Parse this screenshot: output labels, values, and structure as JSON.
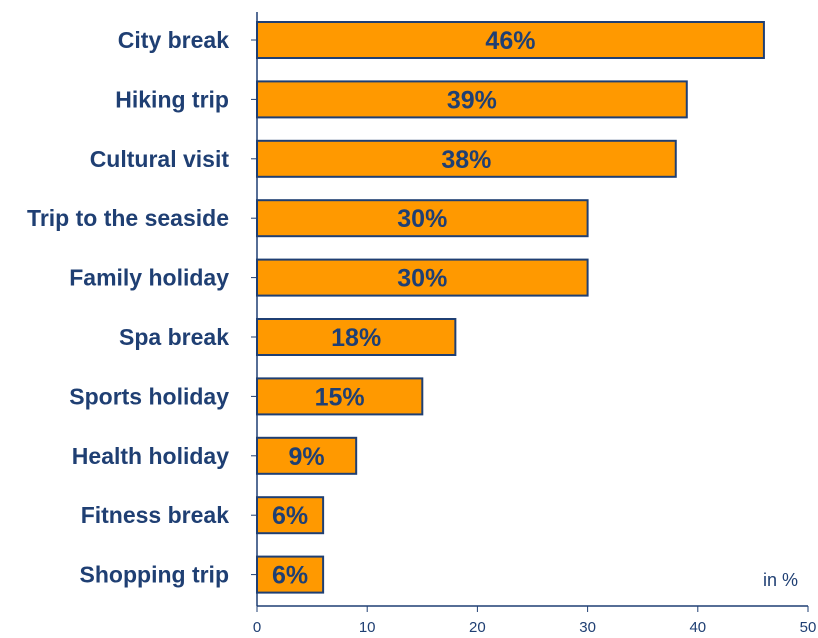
{
  "colors": {
    "bar_fill": "#ff9900",
    "bar_stroke": "#1f3f73",
    "text": "#1f3f73",
    "axis": "#1f3f73"
  },
  "chart_data": {
    "type": "bar",
    "orientation": "horizontal",
    "title": "",
    "xlabel": "",
    "ylabel": "",
    "unit_label": "in %",
    "categories": [
      "City break",
      "Hiking trip",
      "Cultural visit",
      "Trip to the seaside",
      "Family holiday",
      "Spa break",
      "Sports holiday",
      "Health holiday",
      "Fitness break",
      "Shopping trip"
    ],
    "values": [
      46,
      39,
      38,
      30,
      30,
      18,
      15,
      9,
      6,
      6
    ],
    "value_labels": [
      "46%",
      "39%",
      "38%",
      "30%",
      "30%",
      "18%",
      "15%",
      "9%",
      "6%",
      "6%"
    ],
    "xlim": [
      0,
      50
    ],
    "xticks": [
      0,
      10,
      20,
      30,
      40,
      50
    ],
    "grid": false,
    "legend": "none"
  }
}
